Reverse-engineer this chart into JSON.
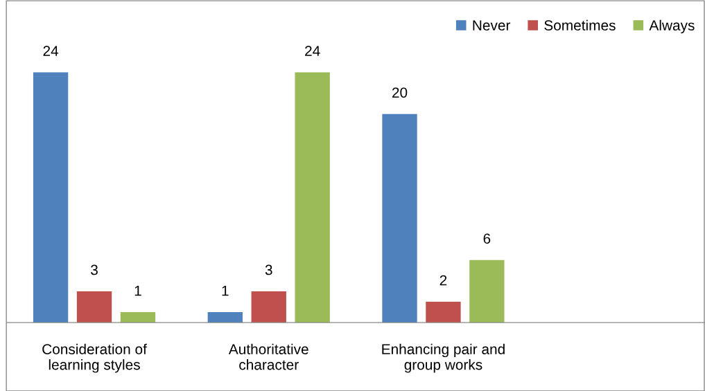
{
  "chart_data": {
    "type": "bar",
    "categories": [
      "Consideration of learning styles",
      "Authoritative character",
      "Enhancing pair and group works",
      null
    ],
    "series": [
      {
        "name": "Never",
        "color": "#4f81bd",
        "values": [
          24,
          1,
          20,
          null
        ]
      },
      {
        "name": "Sometimes",
        "color": "#c0504d",
        "values": [
          3,
          3,
          2,
          null
        ]
      },
      {
        "name": "Always",
        "color": "#9bbb59",
        "values": [
          1,
          24,
          6,
          null
        ]
      }
    ],
    "data_labels": true,
    "legend": "top right",
    "grid": false,
    "tick_labels": "x"
  }
}
